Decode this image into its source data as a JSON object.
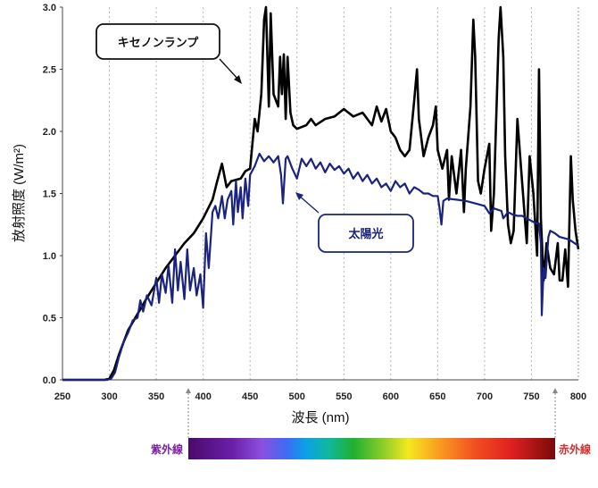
{
  "chart_data": {
    "type": "line",
    "xlabel": "波長 (nm)",
    "ylabel": "放射照度 (W/m²)",
    "xlim": [
      250,
      800
    ],
    "ylim": [
      0,
      3.0
    ],
    "x_ticks": [
      "250",
      "300",
      "350",
      "400",
      "450",
      "500",
      "550",
      "600",
      "650",
      "700",
      "750",
      "800"
    ],
    "y_ticks": [
      "0.0",
      "0.5",
      "1.0",
      "1.5",
      "2.0",
      "2.5",
      "3.0"
    ],
    "grid": "vertical dashed",
    "series": [
      {
        "name": "キセノンランプ",
        "color": "#000000",
        "points": [
          [
            250,
            0
          ],
          [
            295,
            0
          ],
          [
            300,
            0.01
          ],
          [
            305,
            0.08
          ],
          [
            310,
            0.2
          ],
          [
            315,
            0.3
          ],
          [
            320,
            0.4
          ],
          [
            330,
            0.53
          ],
          [
            340,
            0.66
          ],
          [
            350,
            0.78
          ],
          [
            360,
            0.9
          ],
          [
            370,
            1.0
          ],
          [
            380,
            1.1
          ],
          [
            390,
            1.18
          ],
          [
            400,
            1.3
          ],
          [
            410,
            1.45
          ],
          [
            415,
            1.6
          ],
          [
            420,
            1.74
          ],
          [
            425,
            1.55
          ],
          [
            430,
            1.6
          ],
          [
            440,
            1.62
          ],
          [
            445,
            1.68
          ],
          [
            450,
            1.7
          ],
          [
            455,
            2.1
          ],
          [
            458,
            2.0
          ],
          [
            462,
            2.3
          ],
          [
            465,
            2.9
          ],
          [
            467,
            3.0
          ],
          [
            470,
            2.2
          ],
          [
            472,
            2.95
          ],
          [
            475,
            2.3
          ],
          [
            480,
            2.2
          ],
          [
            482,
            2.6
          ],
          [
            484,
            2.3
          ],
          [
            486,
            2.62
          ],
          [
            488,
            2.1
          ],
          [
            490,
            2.6
          ],
          [
            493,
            2.15
          ],
          [
            496,
            2.05
          ],
          [
            500,
            2.02
          ],
          [
            510,
            2.05
          ],
          [
            515,
            2.1
          ],
          [
            520,
            2.05
          ],
          [
            530,
            2.1
          ],
          [
            540,
            2.12
          ],
          [
            550,
            2.18
          ],
          [
            560,
            2.12
          ],
          [
            570,
            2.15
          ],
          [
            580,
            2.05
          ],
          [
            585,
            2.2
          ],
          [
            590,
            2.08
          ],
          [
            595,
            2.18
          ],
          [
            600,
            2.0
          ],
          [
            605,
            1.95
          ],
          [
            610,
            1.85
          ],
          [
            615,
            1.8
          ],
          [
            620,
            1.85
          ],
          [
            625,
            2.25
          ],
          [
            628,
            2.5
          ],
          [
            630,
            2.1
          ],
          [
            635,
            1.8
          ],
          [
            640,
            1.95
          ],
          [
            645,
            2.05
          ],
          [
            648,
            2.2
          ],
          [
            650,
            1.85
          ],
          [
            655,
            1.7
          ],
          [
            660,
            1.85
          ],
          [
            662,
            1.45
          ],
          [
            665,
            1.8
          ],
          [
            670,
            1.5
          ],
          [
            675,
            1.85
          ],
          [
            678,
            1.35
          ],
          [
            680,
            1.7
          ],
          [
            682,
            1.9
          ],
          [
            685,
            2.2
          ],
          [
            688,
            2.9
          ],
          [
            690,
            2.6
          ],
          [
            693,
            1.6
          ],
          [
            696,
            1.5
          ],
          [
            700,
            1.7
          ],
          [
            705,
            1.9
          ],
          [
            707,
            1.2
          ],
          [
            710,
            1.5
          ],
          [
            715,
            2.75
          ],
          [
            717,
            3.0
          ],
          [
            720,
            2.6
          ],
          [
            722,
            1.8
          ],
          [
            725,
            1.25
          ],
          [
            728,
            1.1
          ],
          [
            731,
            1.2
          ],
          [
            735,
            2.1
          ],
          [
            738,
            1.8
          ],
          [
            740,
            1.6
          ],
          [
            745,
            1.1
          ],
          [
            748,
            1.8
          ],
          [
            752,
            1.5
          ],
          [
            756,
            1.0
          ],
          [
            758,
            2.5
          ],
          [
            760,
            1.3
          ],
          [
            763,
            0.8
          ],
          [
            766,
            1.1
          ],
          [
            770,
            0.9
          ],
          [
            774,
            0.85
          ],
          [
            778,
            1.1
          ],
          [
            780,
            0.8
          ],
          [
            783,
            0.8
          ],
          [
            786,
            1.05
          ],
          [
            789,
            0.75
          ],
          [
            792,
            1.8
          ],
          [
            794,
            1.45
          ],
          [
            797,
            1.2
          ],
          [
            800,
            1.05
          ]
        ]
      },
      {
        "name": "太陽光",
        "color": "#1a237e",
        "points": [
          [
            250,
            0
          ],
          [
            298,
            0
          ],
          [
            302,
            0.01
          ],
          [
            306,
            0.06
          ],
          [
            310,
            0.18
          ],
          [
            315,
            0.3
          ],
          [
            320,
            0.38
          ],
          [
            325,
            0.48
          ],
          [
            330,
            0.5
          ],
          [
            333,
            0.64
          ],
          [
            336,
            0.55
          ],
          [
            340,
            0.68
          ],
          [
            345,
            0.6
          ],
          [
            350,
            0.82
          ],
          [
            353,
            0.62
          ],
          [
            356,
            0.85
          ],
          [
            360,
            0.7
          ],
          [
            363,
            0.92
          ],
          [
            367,
            0.62
          ],
          [
            370,
            1.05
          ],
          [
            373,
            0.72
          ],
          [
            376,
            0.95
          ],
          [
            380,
            0.65
          ],
          [
            383,
            1.05
          ],
          [
            386,
            0.72
          ],
          [
            390,
            0.9
          ],
          [
            393,
            0.68
          ],
          [
            397,
            0.85
          ],
          [
            400,
            0.58
          ],
          [
            403,
            1.18
          ],
          [
            406,
            0.9
          ],
          [
            410,
            1.35
          ],
          [
            413,
            1.4
          ],
          [
            416,
            1.3
          ],
          [
            420,
            1.48
          ],
          [
            423,
            1.3
          ],
          [
            426,
            1.45
          ],
          [
            430,
            1.52
          ],
          [
            432,
            1.25
          ],
          [
            435,
            1.6
          ],
          [
            437,
            1.35
          ],
          [
            440,
            1.55
          ],
          [
            442,
            1.3
          ],
          [
            445,
            1.62
          ],
          [
            448,
            1.4
          ],
          [
            450,
            1.65
          ],
          [
            455,
            1.72
          ],
          [
            460,
            1.82
          ],
          [
            465,
            1.76
          ],
          [
            470,
            1.8
          ],
          [
            475,
            1.75
          ],
          [
            480,
            1.8
          ],
          [
            483,
            1.65
          ],
          [
            485,
            1.42
          ],
          [
            488,
            1.78
          ],
          [
            490,
            1.8
          ],
          [
            495,
            1.7
          ],
          [
            500,
            1.62
          ],
          [
            505,
            1.78
          ],
          [
            510,
            1.72
          ],
          [
            515,
            1.78
          ],
          [
            520,
            1.7
          ],
          [
            525,
            1.75
          ],
          [
            530,
            1.67
          ],
          [
            535,
            1.74
          ],
          [
            540,
            1.69
          ],
          [
            545,
            1.72
          ],
          [
            550,
            1.66
          ],
          [
            555,
            1.7
          ],
          [
            560,
            1.62
          ],
          [
            565,
            1.67
          ],
          [
            570,
            1.6
          ],
          [
            575,
            1.65
          ],
          [
            580,
            1.58
          ],
          [
            585,
            1.62
          ],
          [
            590,
            1.55
          ],
          [
            595,
            1.58
          ],
          [
            600,
            1.52
          ],
          [
            605,
            1.6
          ],
          [
            610,
            1.55
          ],
          [
            615,
            1.58
          ],
          [
            620,
            1.5
          ],
          [
            625,
            1.55
          ],
          [
            630,
            1.53
          ],
          [
            635,
            1.5
          ],
          [
            640,
            1.5
          ],
          [
            645,
            1.48
          ],
          [
            650,
            1.48
          ],
          [
            652,
            1.38
          ],
          [
            654,
            1.25
          ],
          [
            656,
            1.44
          ],
          [
            660,
            1.46
          ],
          [
            670,
            1.45
          ],
          [
            680,
            1.44
          ],
          [
            690,
            1.42
          ],
          [
            700,
            1.4
          ],
          [
            705,
            1.34
          ],
          [
            710,
            1.38
          ],
          [
            718,
            1.36
          ],
          [
            720,
            1.3
          ],
          [
            725,
            1.35
          ],
          [
            730,
            1.33
          ],
          [
            735,
            1.32
          ],
          [
            740,
            1.32
          ],
          [
            745,
            1.3
          ],
          [
            750,
            1.28
          ],
          [
            755,
            1.26
          ],
          [
            758,
            1.26
          ],
          [
            760,
            1.1
          ],
          [
            761,
            0.52
          ],
          [
            763,
            0.9
          ],
          [
            765,
            0.82
          ],
          [
            768,
            1.15
          ],
          [
            770,
            1.2
          ],
          [
            775,
            1.18
          ],
          [
            780,
            1.15
          ],
          [
            790,
            1.13
          ],
          [
            800,
            1.08
          ]
        ]
      }
    ],
    "annotations": {
      "xenon": "キセノンランプ",
      "sun": "太陽光",
      "uv": "紫外線",
      "ir": "赤外線"
    }
  }
}
